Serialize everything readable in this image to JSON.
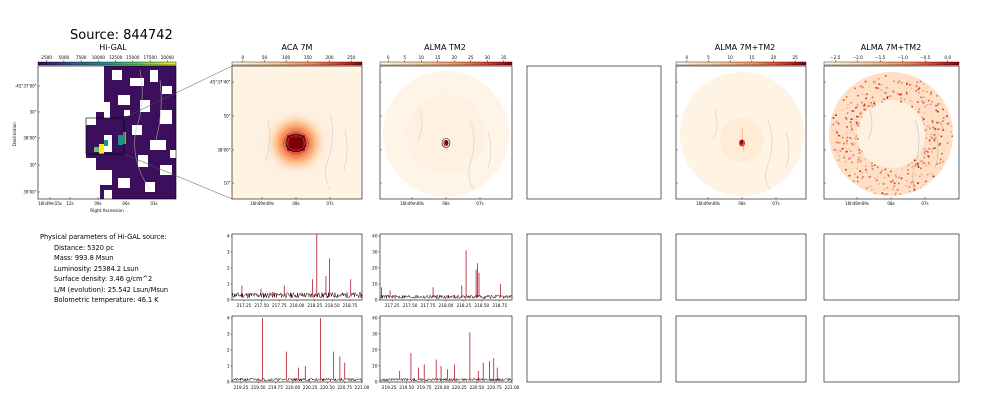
{
  "header": {
    "title": "Source: 844742"
  },
  "panels": {
    "higal_title": "Hi-GAL",
    "aca_title": "ACA 7M",
    "alma_tm2_title": "ALMA TM2",
    "alma_7m_tm2_title": "ALMA 7M+TM2",
    "alma_7m_tm2_log_title": "ALMA 7M+TM2"
  },
  "colorbars": {
    "higal": {
      "ticks": [
        "2500",
        "5000",
        "7500",
        "10000",
        "12500",
        "15000",
        "17500",
        "20000"
      ],
      "colormap": "viridis"
    },
    "aca": {
      "ticks": [
        "0",
        "50",
        "100",
        "150",
        "200",
        "250"
      ],
      "colormap": "orange-red"
    },
    "tm2": {
      "ticks": [
        "0",
        "5",
        "10",
        "15",
        "20",
        "25",
        "30",
        "35"
      ],
      "colormap": "orange-red"
    },
    "combo": {
      "ticks": [
        "0",
        "5",
        "10",
        "15",
        "20",
        "25"
      ],
      "colormap": "orange-red"
    },
    "combo_log": {
      "ticks": [
        "−2.5",
        "−2.0",
        "−1.5",
        "−1.0",
        "−0.5",
        "0.0"
      ],
      "colormap": "orange-red"
    }
  },
  "axes": {
    "dec_label": "Declination",
    "ra_label": "Right Ascension",
    "higal_yticks": [
      "-45°37'00\"",
      "30\"",
      "38'00\"",
      "30\"",
      "39'00\""
    ],
    "higal_xticks": [
      "16h49m15s",
      "12s",
      "09s",
      "06s",
      "03s"
    ],
    "map_yticks": [
      "-45°37'40\"",
      "50\"",
      "38'00\"",
      "10\""
    ],
    "map_xticks": [
      "16h49m09s",
      "08s",
      "07s"
    ]
  },
  "params": {
    "heading": "Physical parameters of Hi-GAL source:",
    "lines": [
      "Distance: 5320 pc",
      "Mass: 993.8 Msun",
      "Luminosity: 25384.2 Lsun",
      "Surface density: 3.46 g/cm^2",
      "L/M (evolution): 25.542 Lsun/Msun",
      "Bolometric temperature: 46.1 K"
    ]
  },
  "chart_data": [
    {
      "type": "line",
      "panel": "spectrum-aca-low",
      "x_range": [
        217.08,
        218.92
      ],
      "xticks": [
        "217.25",
        "217.50",
        "217.75",
        "218.00",
        "218.25",
        "218.50",
        "218.75"
      ],
      "ylim": [
        0,
        4
      ],
      "yticks": [
        "0",
        "1",
        "2",
        "3",
        "4"
      ],
      "baseline": 0.3,
      "peaks": [
        [
          217.22,
          0.9
        ],
        [
          217.49,
          0.7
        ],
        [
          217.65,
          0.5
        ],
        [
          217.82,
          0.9
        ],
        [
          218.22,
          1.3
        ],
        [
          218.28,
          4.1
        ],
        [
          218.41,
          1.5
        ],
        [
          218.46,
          2.6
        ],
        [
          218.76,
          1.3
        ]
      ]
    },
    {
      "type": "line",
      "panel": "spectrum-tm2-low",
      "x_range": [
        217.08,
        218.92
      ],
      "xticks": [
        "217.25",
        "217.50",
        "217.75",
        "218.00",
        "218.25",
        "218.50",
        "218.75"
      ],
      "ylim": [
        0,
        40
      ],
      "yticks": [
        "0",
        "10",
        "20",
        "30",
        "40"
      ],
      "baseline": 2,
      "peaks": [
        [
          217.1,
          8
        ],
        [
          217.22,
          6
        ],
        [
          217.82,
          8
        ],
        [
          218.22,
          9
        ],
        [
          218.28,
          31
        ],
        [
          218.42,
          19
        ],
        [
          218.44,
          23
        ],
        [
          218.46,
          17
        ],
        [
          218.76,
          10
        ]
      ]
    },
    {
      "type": "line",
      "panel": "spectrum-aca-high",
      "x_range": [
        219.12,
        221.0
      ],
      "xticks": [
        "219.25",
        "219.50",
        "219.75",
        "220.00",
        "220.25",
        "220.50",
        "220.75",
        "221.00"
      ],
      "ylim": [
        0,
        4
      ],
      "yticks": [
        "0",
        "1",
        "2",
        "3",
        "4"
      ],
      "baseline": 0.15,
      "peaks": [
        [
          219.56,
          4.0
        ],
        [
          219.91,
          1.9
        ],
        [
          220.08,
          0.9
        ],
        [
          220.18,
          1.0
        ],
        [
          220.4,
          4.0
        ],
        [
          220.59,
          1.9
        ],
        [
          220.68,
          1.6
        ],
        [
          220.75,
          1.2
        ]
      ]
    },
    {
      "type": "line",
      "panel": "spectrum-tm2-high",
      "x_range": [
        219.12,
        221.0
      ],
      "xticks": [
        "219.25",
        "219.50",
        "219.75",
        "220.00",
        "220.25",
        "220.50",
        "220.75",
        "221.00"
      ],
      "ylim": [
        0,
        40
      ],
      "yticks": [
        "0",
        "10",
        "20",
        "30",
        "40"
      ],
      "baseline": 1.5,
      "peaks": [
        [
          219.4,
          7
        ],
        [
          219.56,
          18
        ],
        [
          219.67,
          9
        ],
        [
          219.75,
          11
        ],
        [
          219.92,
          14
        ],
        [
          219.99,
          10
        ],
        [
          220.08,
          8
        ],
        [
          220.18,
          11
        ],
        [
          220.4,
          31
        ],
        [
          220.52,
          7
        ],
        [
          220.59,
          12
        ],
        [
          220.68,
          13
        ],
        [
          220.74,
          15
        ],
        [
          220.79,
          9
        ]
      ]
    }
  ]
}
